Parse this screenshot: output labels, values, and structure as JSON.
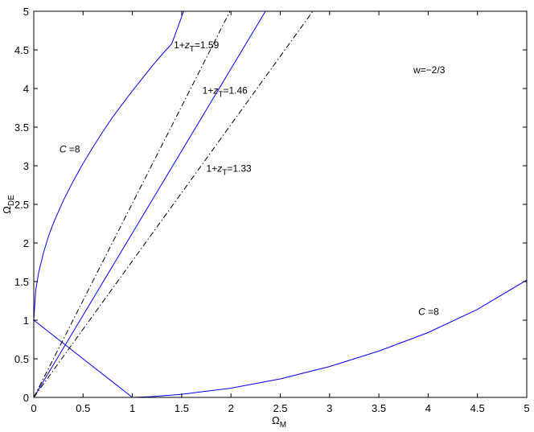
{
  "chart_data": {
    "type": "line",
    "xlabel": "Ω",
    "xlabel_sub": "M",
    "ylabel": "Ω",
    "ylabel_sub": "DE",
    "xlim": [
      0,
      5
    ],
    "ylim": [
      0,
      5
    ],
    "grid": false,
    "xticks": [
      0,
      0.5,
      1,
      1.5,
      2,
      2.5,
      3,
      3.5,
      4,
      4.5,
      5
    ],
    "xtick_labels": [
      "0",
      "0.5",
      "1",
      "1.5",
      "2",
      "2.5",
      "3",
      "3.5",
      "4",
      "4.5",
      "5"
    ],
    "yticks": [
      0,
      0.5,
      1,
      1.5,
      2,
      2.5,
      3,
      3.5,
      4,
      4.5,
      5
    ],
    "ytick_labels": [
      "0",
      "0.5",
      "1",
      "1.5",
      "2",
      "2.5",
      "3",
      "3.5",
      "4",
      "4.5",
      "5"
    ],
    "series": [
      {
        "style": "solid",
        "color": "#0000ff",
        "x": [
          0,
          0.02,
          0.05,
          0.1,
          0.15,
          0.2,
          0.3,
          0.4,
          0.5,
          0.6,
          0.7,
          0.8,
          0.9,
          1.0,
          1.1,
          1.2,
          1.3,
          1.4,
          1.52
        ],
        "y": [
          1.0,
          1.39,
          1.62,
          1.88,
          2.09,
          2.26,
          2.55,
          2.8,
          3.03,
          3.24,
          3.44,
          3.63,
          3.8,
          3.97,
          4.13,
          4.29,
          4.44,
          4.58,
          5.0
        ]
      },
      {
        "style": "solid",
        "color": "#0000ff",
        "x": [
          1.0,
          1.2,
          1.5,
          2.0,
          2.5,
          3.0,
          3.5,
          4.0,
          4.5,
          5.0
        ],
        "y": [
          0,
          0.01,
          0.04,
          0.12,
          0.24,
          0.4,
          0.6,
          0.84,
          1.14,
          1.52
        ]
      },
      {
        "style": "solid",
        "color": "#0000ff",
        "x": [
          0,
          1.0
        ],
        "y": [
          1.0,
          0
        ]
      },
      {
        "style": "solid",
        "color": "#0000ff",
        "x": [
          0,
          2.35
        ],
        "y": [
          0,
          5.0
        ]
      },
      {
        "style": "dashdot",
        "color": "#000000",
        "x": [
          0,
          1.99
        ],
        "y": [
          0,
          5.0
        ]
      },
      {
        "style": "dashdot",
        "color": "#000000",
        "x": [
          0,
          2.83
        ],
        "y": [
          0,
          5.0
        ]
      }
    ],
    "annotations": [
      {
        "pre": "1+",
        "italic": "z",
        "sub": "T",
        "post": "=1.59",
        "x": 1.42,
        "y": 4.52
      },
      {
        "pre": "1+",
        "italic": "z",
        "sub": "T",
        "post": "=1.46",
        "x": 1.71,
        "y": 3.93
      },
      {
        "pre": "1+",
        "italic": "z",
        "sub": "T",
        "post": "=1.33",
        "x": 1.75,
        "y": 2.92
      },
      {
        "pre": "",
        "italic": "C",
        "sub": "",
        "post": " =8",
        "x": 0.26,
        "y": 3.17
      },
      {
        "pre": "",
        "italic": "C",
        "sub": "",
        "post": " =8",
        "x": 3.9,
        "y": 1.07
      },
      {
        "pre": "w=−2/3",
        "italic": "",
        "sub": "",
        "post": "",
        "x": 3.85,
        "y": 4.2
      }
    ]
  }
}
